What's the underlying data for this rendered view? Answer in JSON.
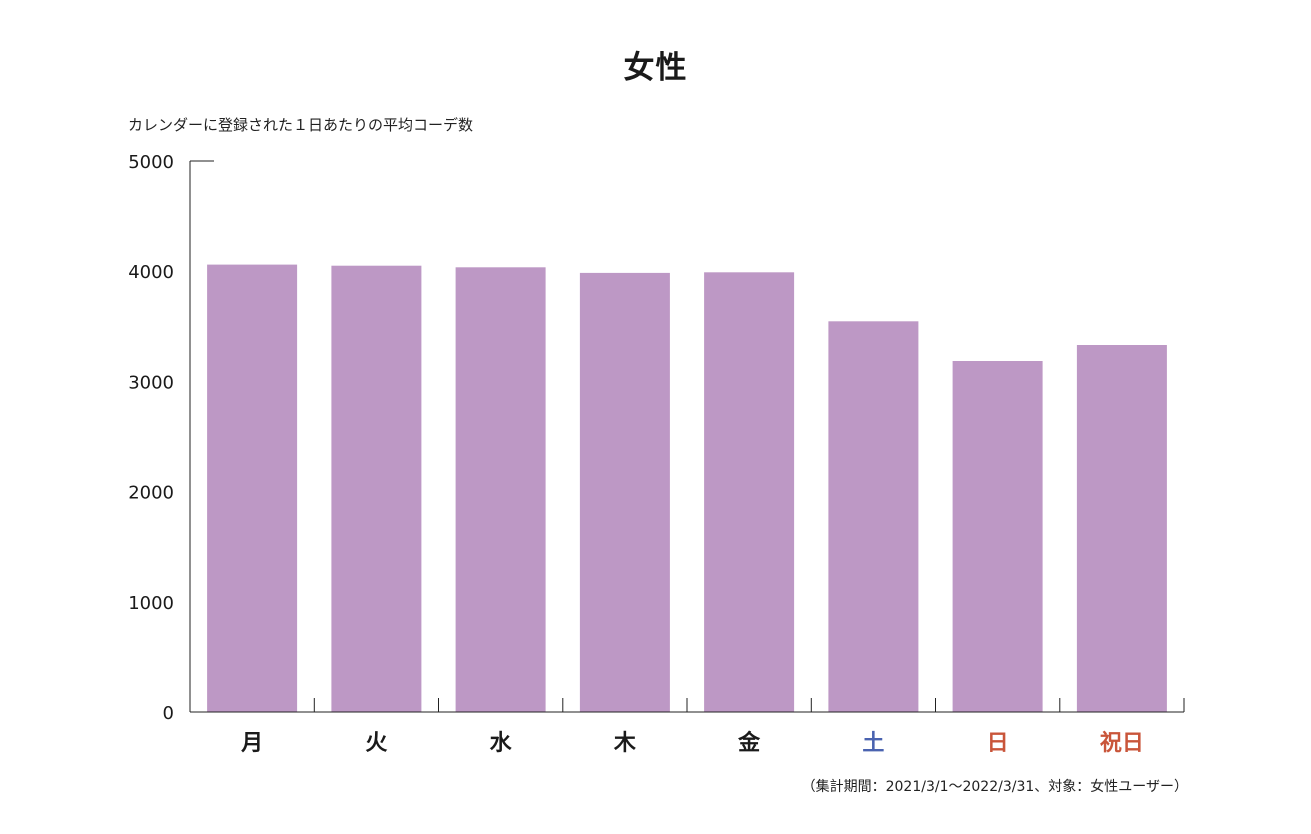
{
  "chart_data": {
    "type": "bar",
    "title": "女性",
    "ylabel": "カレンダーに登録された１日あたりの平均コーデ数",
    "xlabel": "",
    "categories": [
      "月",
      "火",
      "水",
      "木",
      "金",
      "土",
      "日",
      "祝日"
    ],
    "category_colors": [
      "#1a1a1a",
      "#1a1a1a",
      "#1a1a1a",
      "#1a1a1a",
      "#1a1a1a",
      "#4a63b0",
      "#c9553a",
      "#c9553a"
    ],
    "values": [
      4060,
      4050,
      4035,
      3985,
      3990,
      3545,
      3185,
      3330
    ],
    "ylim": [
      0,
      5000
    ],
    "yticks": [
      0,
      1000,
      2000,
      3000,
      4000,
      5000
    ],
    "bar_color": "#bd98c5",
    "grid": false,
    "footnote": "（集計期間：2021/3/1〜2022/3/31、対象：女性ユーザー）"
  }
}
